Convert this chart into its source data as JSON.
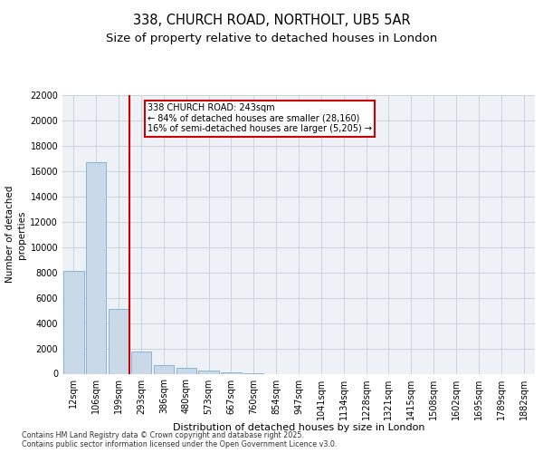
{
  "title": "338, CHURCH ROAD, NORTHOLT, UB5 5AR",
  "subtitle": "Size of property relative to detached houses in London",
  "xlabel": "Distribution of detached houses by size in London",
  "ylabel": "Number of detached\nproperties",
  "categories": [
    "12sqm",
    "106sqm",
    "199sqm",
    "293sqm",
    "386sqm",
    "480sqm",
    "573sqm",
    "667sqm",
    "760sqm",
    "854sqm",
    "947sqm",
    "1041sqm",
    "1134sqm",
    "1228sqm",
    "1321sqm",
    "1415sqm",
    "1508sqm",
    "1602sqm",
    "1695sqm",
    "1789sqm",
    "1882sqm"
  ],
  "values": [
    8100,
    16700,
    5100,
    1750,
    700,
    450,
    250,
    130,
    60,
    0,
    0,
    0,
    0,
    0,
    0,
    0,
    0,
    0,
    0,
    0,
    0
  ],
  "bar_color": "#c9d9e8",
  "bar_edge_color": "#7aaed6",
  "vline_color": "#cc0000",
  "annotation_text": "338 CHURCH ROAD: 243sqm\n← 84% of detached houses are smaller (28,160)\n16% of semi-detached houses are larger (5,205) →",
  "annotation_box_color": "#cc0000",
  "ylim": [
    0,
    22000
  ],
  "yticks": [
    0,
    2000,
    4000,
    6000,
    8000,
    10000,
    12000,
    14000,
    16000,
    18000,
    20000,
    22000
  ],
  "grid_color": "#c8d4e0",
  "background_color": "#eef2f7",
  "footer": "Contains HM Land Registry data © Crown copyright and database right 2025.\nContains public sector information licensed under the Open Government Licence v3.0.",
  "title_fontsize": 10.5,
  "subtitle_fontsize": 9.5,
  "ylabel_fontsize": 7.5,
  "xlabel_fontsize": 8,
  "tick_fontsize": 7,
  "annot_fontsize": 7
}
